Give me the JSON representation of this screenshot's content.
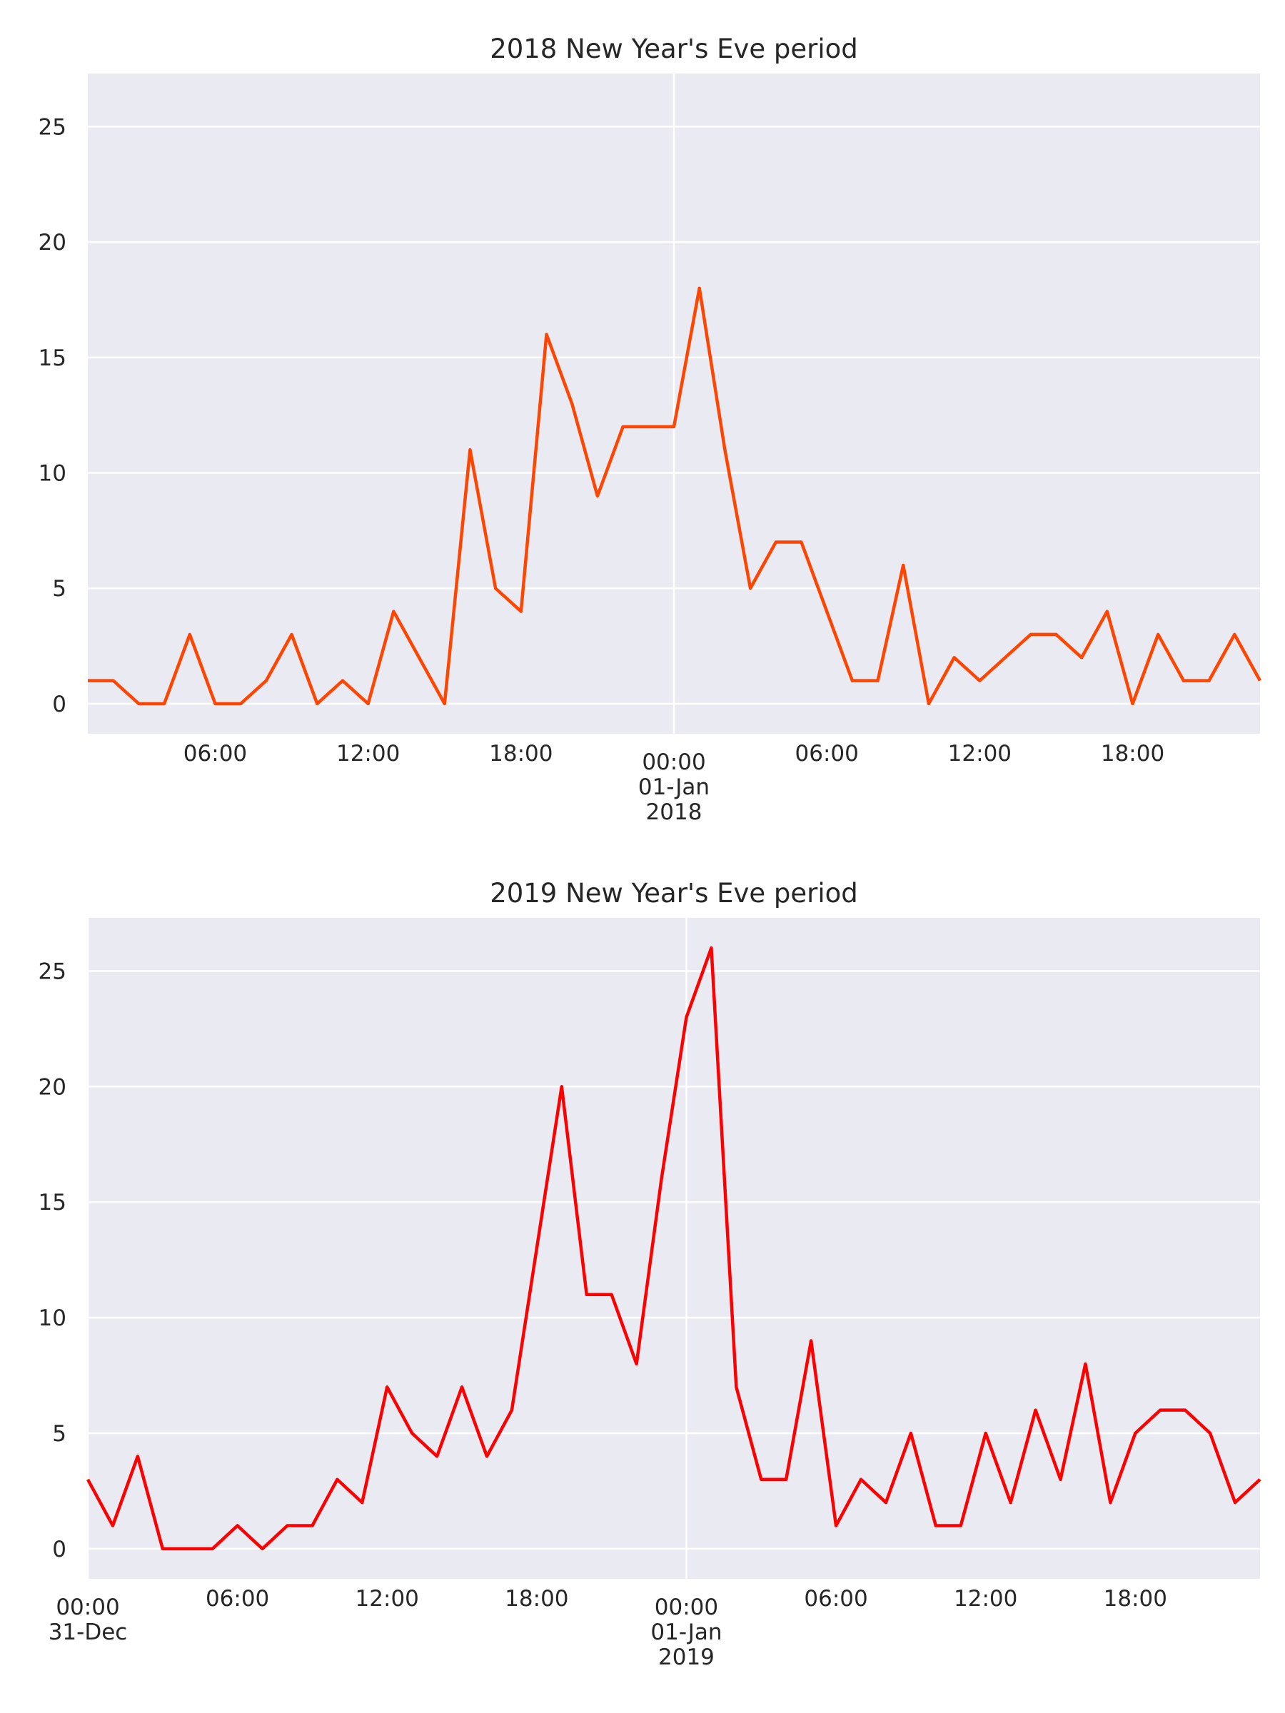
{
  "chart_data": [
    {
      "type": "line",
      "title": "2018 New Year's Eve period",
      "color": "#ff4500",
      "x": [
        "2017-12-31T01:00",
        "2017-12-31T02:00",
        "2017-12-31T03:00",
        "2017-12-31T04:00",
        "2017-12-31T05:00",
        "2017-12-31T06:00",
        "2017-12-31T07:00",
        "2017-12-31T08:00",
        "2017-12-31T09:00",
        "2017-12-31T10:00",
        "2017-12-31T11:00",
        "2017-12-31T12:00",
        "2017-12-31T13:00",
        "2017-12-31T14:00",
        "2017-12-31T15:00",
        "2017-12-31T16:00",
        "2017-12-31T17:00",
        "2017-12-31T18:00",
        "2017-12-31T19:00",
        "2017-12-31T20:00",
        "2017-12-31T21:00",
        "2017-12-31T22:00",
        "2017-12-31T23:00",
        "2018-01-01T00:00",
        "2018-01-01T01:00",
        "2018-01-01T02:00",
        "2018-01-01T03:00",
        "2018-01-01T04:00",
        "2018-01-01T05:00",
        "2018-01-01T06:00",
        "2018-01-01T07:00",
        "2018-01-01T08:00",
        "2018-01-01T09:00",
        "2018-01-01T10:00",
        "2018-01-01T11:00",
        "2018-01-01T12:00",
        "2018-01-01T13:00",
        "2018-01-01T14:00",
        "2018-01-01T15:00",
        "2018-01-01T16:00",
        "2018-01-01T17:00",
        "2018-01-01T18:00",
        "2018-01-01T19:00",
        "2018-01-01T20:00",
        "2018-01-01T21:00",
        "2018-01-01T22:00",
        "2018-01-01T23:00"
      ],
      "values": [
        1,
        1,
        0,
        0,
        3,
        0,
        0,
        1,
        3,
        0,
        1,
        0,
        4,
        2,
        0,
        11,
        5,
        4,
        16,
        13,
        9,
        12,
        12,
        12,
        18,
        11,
        5,
        7,
        7,
        4,
        1,
        1,
        6,
        0,
        2,
        1,
        2,
        3,
        3,
        2,
        4,
        0,
        3,
        1,
        1,
        3,
        1
      ],
      "xlim": [
        "2017-12-31T01:00",
        "2018-01-01T23:00"
      ],
      "xticks": [
        {
          "value": "2018-01-01T00:00",
          "label": [
            "00:00",
            "01-Jan",
            "2018"
          ]
        }
      ],
      "xminorticks": [
        {
          "value": "2017-12-31T06:00",
          "label": "06:00"
        },
        {
          "value": "2017-12-31T12:00",
          "label": "12:00"
        },
        {
          "value": "2017-12-31T18:00",
          "label": "18:00"
        },
        {
          "value": "2018-01-01T06:00",
          "label": "06:00"
        },
        {
          "value": "2018-01-01T12:00",
          "label": "12:00"
        },
        {
          "value": "2018-01-01T18:00",
          "label": "18:00"
        }
      ],
      "ylim": [
        -1.3,
        27.3
      ],
      "yticks": [
        0,
        5,
        10,
        15,
        20,
        25
      ],
      "grid": true
    },
    {
      "type": "line",
      "title": "2019 New Year's Eve period",
      "color": "#ff0000",
      "x": [
        "2018-12-31T00:00",
        "2018-12-31T01:00",
        "2018-12-31T02:00",
        "2018-12-31T03:00",
        "2018-12-31T04:00",
        "2018-12-31T05:00",
        "2018-12-31T06:00",
        "2018-12-31T07:00",
        "2018-12-31T08:00",
        "2018-12-31T09:00",
        "2018-12-31T10:00",
        "2018-12-31T11:00",
        "2018-12-31T12:00",
        "2018-12-31T13:00",
        "2018-12-31T14:00",
        "2018-12-31T15:00",
        "2018-12-31T16:00",
        "2018-12-31T17:00",
        "2018-12-31T18:00",
        "2018-12-31T19:00",
        "2018-12-31T20:00",
        "2018-12-31T21:00",
        "2018-12-31T22:00",
        "2018-12-31T23:00",
        "2019-01-01T00:00",
        "2019-01-01T01:00",
        "2019-01-01T02:00",
        "2019-01-01T03:00",
        "2019-01-01T04:00",
        "2019-01-01T05:00",
        "2019-01-01T06:00",
        "2019-01-01T07:00",
        "2019-01-01T08:00",
        "2019-01-01T09:00",
        "2019-01-01T10:00",
        "2019-01-01T11:00",
        "2019-01-01T12:00",
        "2019-01-01T13:00",
        "2019-01-01T14:00",
        "2019-01-01T15:00",
        "2019-01-01T16:00",
        "2019-01-01T17:00",
        "2019-01-01T18:00",
        "2019-01-01T19:00",
        "2019-01-01T20:00",
        "2019-01-01T21:00",
        "2019-01-01T22:00",
        "2019-01-01T23:00"
      ],
      "values": [
        3,
        1,
        4,
        0,
        0,
        0,
        1,
        0,
        1,
        1,
        3,
        2,
        7,
        5,
        4,
        7,
        4,
        6,
        13,
        20,
        11,
        11,
        8,
        16,
        23,
        26,
        7,
        3,
        3,
        9,
        1,
        3,
        2,
        5,
        1,
        1,
        5,
        2,
        6,
        3,
        8,
        2,
        5,
        6,
        6,
        5,
        2,
        3
      ],
      "xlim": [
        "2018-12-31T00:00",
        "2019-01-01T23:00"
      ],
      "xticks": [
        {
          "value": "2018-12-31T00:00",
          "label": [
            "00:00",
            "31-Dec"
          ]
        },
        {
          "value": "2019-01-01T00:00",
          "label": [
            "00:00",
            "01-Jan",
            "2019"
          ]
        }
      ],
      "xminorticks": [
        {
          "value": "2018-12-31T06:00",
          "label": "06:00"
        },
        {
          "value": "2018-12-31T12:00",
          "label": "12:00"
        },
        {
          "value": "2018-12-31T18:00",
          "label": "18:00"
        },
        {
          "value": "2019-01-01T06:00",
          "label": "06:00"
        },
        {
          "value": "2019-01-01T12:00",
          "label": "12:00"
        },
        {
          "value": "2019-01-01T18:00",
          "label": "18:00"
        }
      ],
      "ylim": [
        -1.3,
        27.3
      ],
      "yticks": [
        0,
        5,
        10,
        15,
        20,
        25
      ],
      "grid": true
    }
  ]
}
